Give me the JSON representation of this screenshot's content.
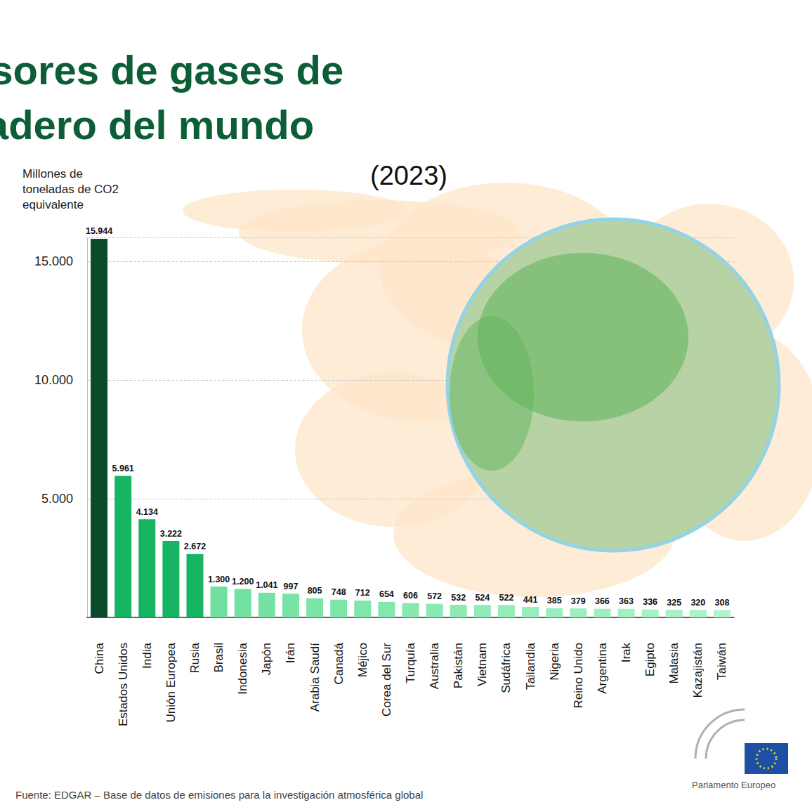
{
  "chart_data": {
    "type": "bar",
    "title": "Principales emisores de gases de efecto invernadero del mundo",
    "subtitle": "(2023)",
    "y_label": "Millones de toneladas de CO2 equivalente",
    "source": "Fuente: EDGAR – Base de datos de emisiones para la investigación atmosférica global",
    "logo_text": "Parlamento Europeo",
    "categories": [
      "China",
      "Estados Unidos",
      "India",
      "Unión Europea",
      "Rusia",
      "Brasil",
      "Indonesia",
      "Japón",
      "Irán",
      "Arabia Saudí",
      "Canadá",
      "Méjico",
      "Corea del Sur",
      "Turquía",
      "Australia",
      "Pakistán",
      "Vietnam",
      "Sudáfrica",
      "Tailandia",
      "Nigeria",
      "Reino Unido",
      "Argentina",
      "Irak",
      "Egipto",
      "Malasia",
      "Kazajistán",
      "Taiwán"
    ],
    "values": [
      15944,
      5961,
      4134,
      3222,
      2672,
      1300,
      1200,
      1041,
      997,
      805,
      748,
      712,
      654,
      606,
      572,
      532,
      524,
      522,
      441,
      385,
      379,
      366,
      363,
      336,
      325,
      320,
      308
    ],
    "value_labels": [
      "15.944",
      "5.961",
      "4.134",
      "3.222",
      "2.672",
      "1.300",
      "1.200",
      "1.041",
      "997",
      "805",
      "748",
      "712",
      "654",
      "606",
      "572",
      "532",
      "524",
      "522",
      "441",
      "385",
      "379",
      "366",
      "363",
      "336",
      "325",
      "320",
      "308"
    ],
    "colors": [
      "#0b4a2a",
      "#16b463",
      "#16b463",
      "#16b463",
      "#16b463",
      "#6fe09f",
      "#72e1a2",
      "#75e2a4",
      "#78e3a6",
      "#7be4a8",
      "#7ee5aa",
      "#81e6ac",
      "#84e7ae",
      "#88e8b1",
      "#8be9b3",
      "#8eeab5",
      "#91ebb7",
      "#94ecb9",
      "#97edbb",
      "#9aeebd",
      "#9deebf",
      "#a0efc1",
      "#a3f0c3",
      "#a6f0c5",
      "#a9f1c7",
      "#acf2c9",
      "#aff2cb"
    ],
    "ylim": [
      0,
      16000
    ],
    "yticks": [
      {
        "value": 5000,
        "label": "5.000"
      },
      {
        "value": 10000,
        "label": "10.000"
      },
      {
        "value": 15000,
        "label": "15.000"
      }
    ],
    "grid": true,
    "data_labels": true
  }
}
